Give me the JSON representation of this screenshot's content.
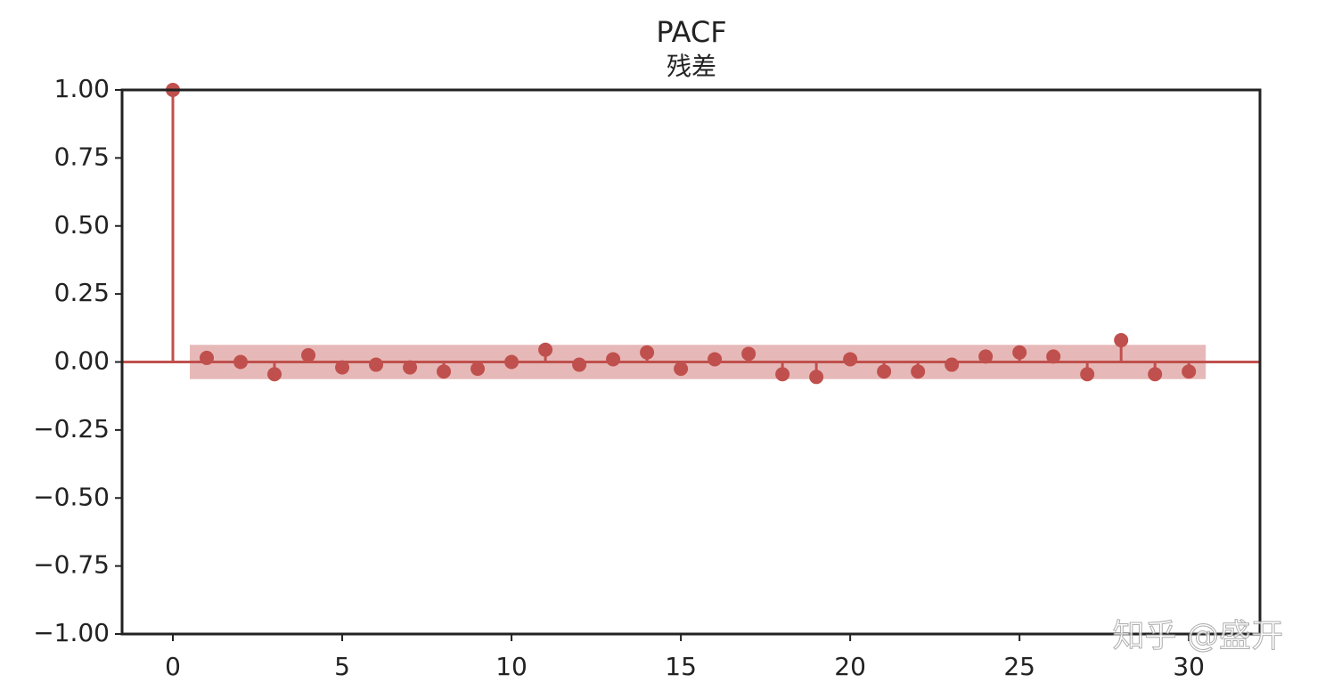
{
  "chart_data": {
    "type": "stem",
    "title": "PACF",
    "subtitle": "残差",
    "x": [
      0,
      1,
      2,
      3,
      4,
      5,
      6,
      7,
      8,
      9,
      10,
      11,
      12,
      13,
      14,
      15,
      16,
      17,
      18,
      19,
      20,
      21,
      22,
      23,
      24,
      25,
      26,
      27,
      28,
      29,
      30
    ],
    "values": [
      1.0,
      0.015,
      0.0,
      -0.045,
      0.025,
      -0.02,
      -0.01,
      -0.02,
      -0.035,
      -0.025,
      0.0,
      0.045,
      -0.01,
      0.01,
      0.035,
      -0.025,
      0.01,
      0.03,
      -0.045,
      -0.055,
      0.01,
      -0.035,
      -0.035,
      -0.01,
      0.02,
      0.035,
      0.02,
      -0.045,
      0.08,
      -0.045,
      -0.035
    ],
    "color": "#c0504d",
    "confint": [
      -0.063,
      0.063
    ],
    "xlim": [
      -1.5,
      32.1
    ],
    "ylim": [
      -1,
      1
    ],
    "xticks": [
      0,
      5,
      10,
      15,
      20,
      25,
      30
    ],
    "yticks": [
      {
        "value": 1,
        "label": "1.00"
      },
      {
        "value": 0.75,
        "label": "0.75"
      },
      {
        "value": 0.5,
        "label": "0.50"
      },
      {
        "value": 0.25,
        "label": "0.25"
      },
      {
        "value": 0,
        "label": "0.00"
      },
      {
        "value": -0.25,
        "label": "−0.25"
      },
      {
        "value": -0.5,
        "label": "−0.50"
      },
      {
        "value": -0.75,
        "label": "−0.75"
      },
      {
        "value": -1,
        "label": "−1.00"
      }
    ],
    "watermark": "知乎 @盛开"
  }
}
